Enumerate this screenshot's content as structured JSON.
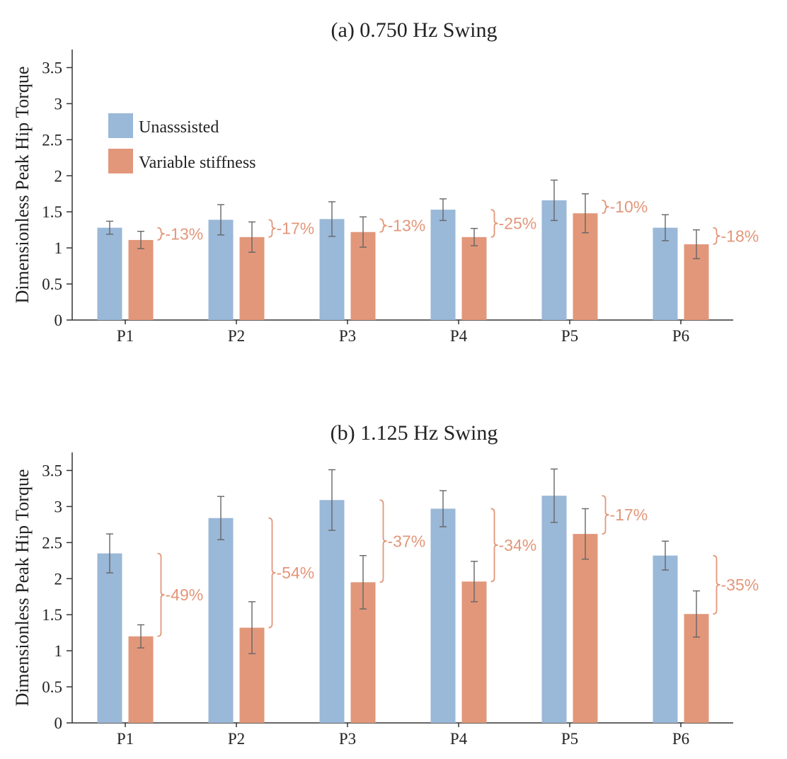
{
  "colors": {
    "unassisted": "#9ab8d8",
    "variable_stiffness": "#e2977a",
    "annotation": "#e2977a",
    "axis": "#333333",
    "error_bar": "#666666"
  },
  "legend": {
    "placement": "upper-left of panel (a)",
    "entries": [
      "Unasssisted",
      "Variable stiffness"
    ]
  },
  "chart_data": [
    {
      "type": "bar",
      "title": "(a) 0.750 Hz Swing",
      "xlabel": "",
      "ylabel": "Dimensionless Peak Hip Torque",
      "ylim": [
        0,
        3.75
      ],
      "yticks": [
        0,
        0.5,
        1,
        1.5,
        2,
        2.5,
        3,
        3.5
      ],
      "ytick_labels": [
        "0",
        "0.5",
        "1",
        "1.5",
        "2",
        "2.5",
        "3",
        "3.5"
      ],
      "categories": [
        "P1",
        "P2",
        "P3",
        "P4",
        "P5",
        "P6"
      ],
      "grid": false,
      "series": [
        {
          "name": "Unasssisted",
          "values": [
            1.28,
            1.39,
            1.4,
            1.53,
            1.66,
            1.28
          ],
          "error": [
            0.09,
            0.21,
            0.24,
            0.15,
            0.28,
            0.18
          ]
        },
        {
          "name": "Variable stiffness",
          "values": [
            1.11,
            1.15,
            1.22,
            1.15,
            1.48,
            1.05
          ],
          "error": [
            0.12,
            0.21,
            0.21,
            0.12,
            0.27,
            0.2
          ]
        }
      ],
      "annotations": [
        "-13%",
        "-17%",
        "-13%",
        "-25%",
        "-10%",
        "-18%"
      ]
    },
    {
      "type": "bar",
      "title": "(b) 1.125 Hz Swing",
      "xlabel": "",
      "ylabel": "Dimensionless Peak Hip Torque",
      "ylim": [
        0,
        3.75
      ],
      "yticks": [
        0,
        0.5,
        1,
        1.5,
        2,
        2.5,
        3,
        3.5
      ],
      "ytick_labels": [
        "0",
        "0.5",
        "1",
        "1.5",
        "2",
        "2.5",
        "3",
        "3.5"
      ],
      "categories": [
        "P1",
        "P2",
        "P3",
        "P4",
        "P5",
        "P6"
      ],
      "grid": false,
      "series": [
        {
          "name": "Unasssisted",
          "values": [
            2.35,
            2.84,
            3.09,
            2.97,
            3.15,
            2.32
          ],
          "error": [
            0.27,
            0.3,
            0.42,
            0.25,
            0.37,
            0.2
          ]
        },
        {
          "name": "Variable stiffness",
          "values": [
            1.2,
            1.32,
            1.95,
            1.96,
            2.62,
            1.51
          ],
          "error": [
            0.16,
            0.36,
            0.37,
            0.28,
            0.35,
            0.32
          ]
        }
      ],
      "annotations": [
        "-49%",
        "-54%",
        "-37%",
        "-34%",
        "-17%",
        "-35%"
      ]
    }
  ]
}
